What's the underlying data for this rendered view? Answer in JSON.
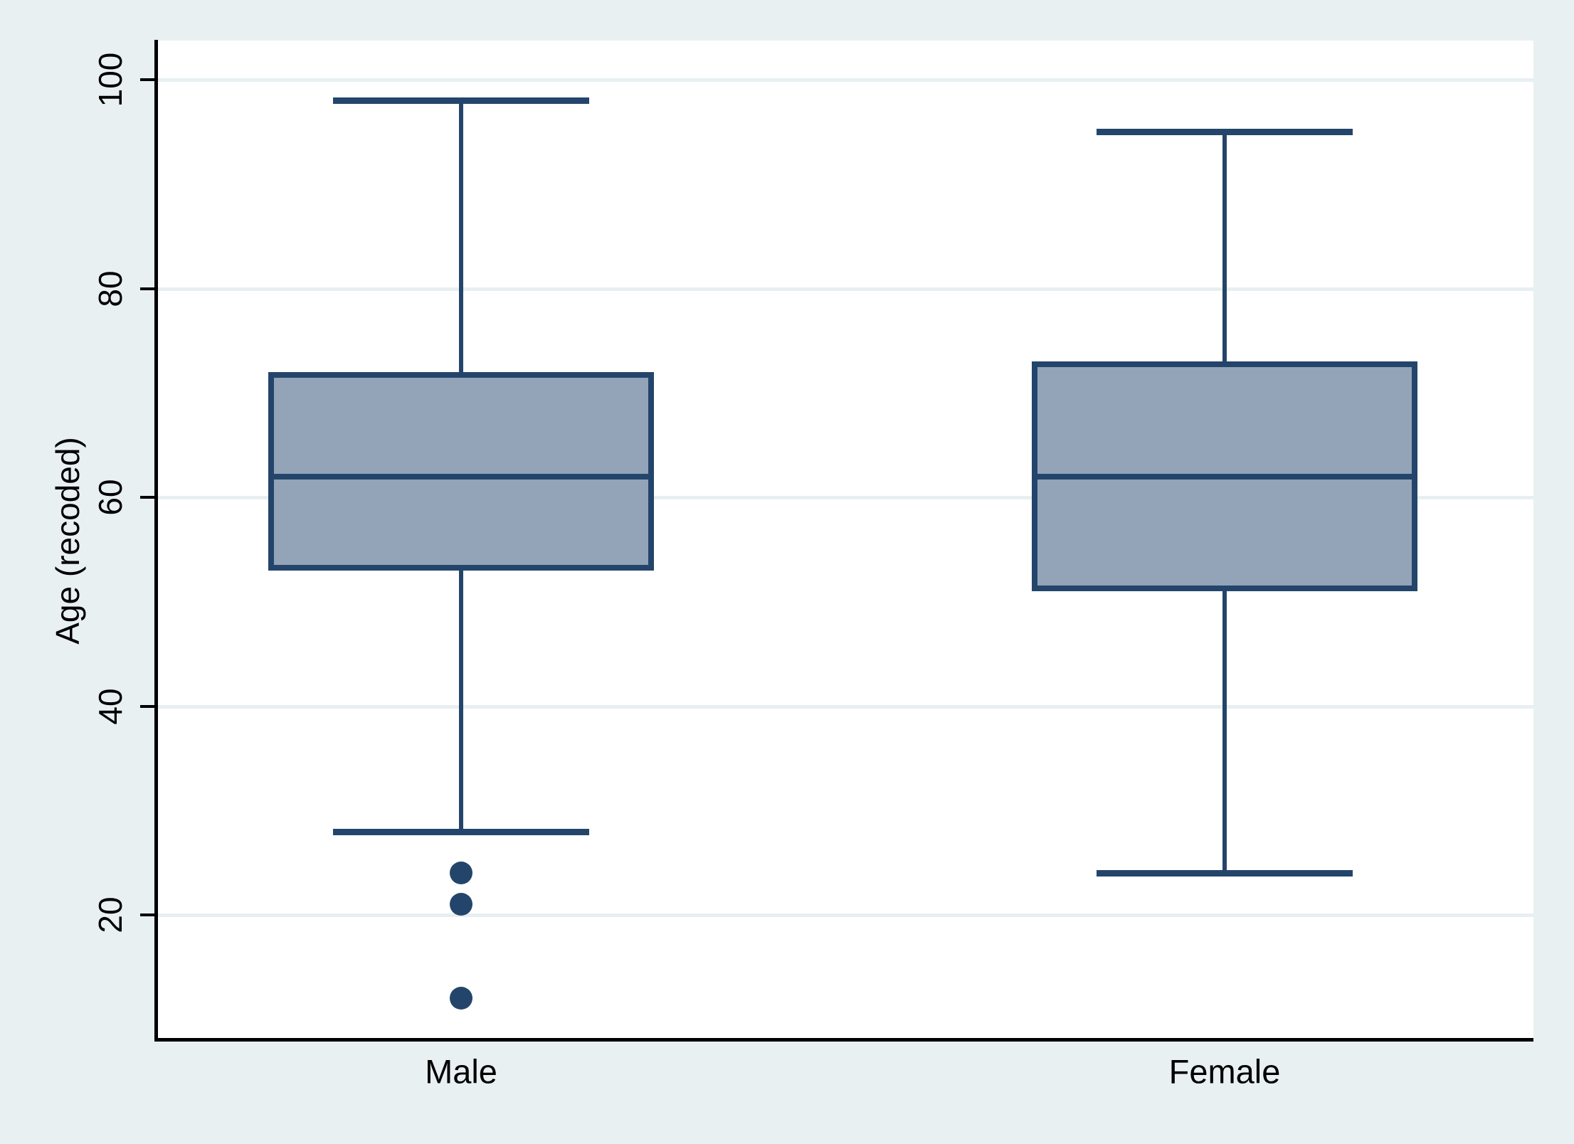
{
  "chart_data": {
    "type": "box",
    "title": "",
    "ylabel": "Age (recoded)",
    "xlabel": "",
    "yticks": [
      100,
      80,
      60,
      40,
      20
    ],
    "categories": [
      "Male",
      "Female"
    ],
    "series": [
      {
        "category": "Male",
        "whisker_high": 98,
        "q3": 72,
        "median": 62,
        "q1": 53,
        "whisker_low": 28,
        "outliers": [
          24,
          21,
          12
        ]
      },
      {
        "category": "Female",
        "whisker_high": 95,
        "q3": 73,
        "median": 62,
        "q1": 51,
        "whisker_low": 24,
        "outliers": []
      }
    ],
    "legend": "none",
    "grid": "horizontal",
    "colors": {
      "background": "#e9f0f2",
      "plot_background": "#ffffff",
      "gridline": "#e7eff1",
      "box_fill": "#93a4b8",
      "box_line": "#24456b",
      "axis": "#000000",
      "text": "#000000"
    }
  }
}
